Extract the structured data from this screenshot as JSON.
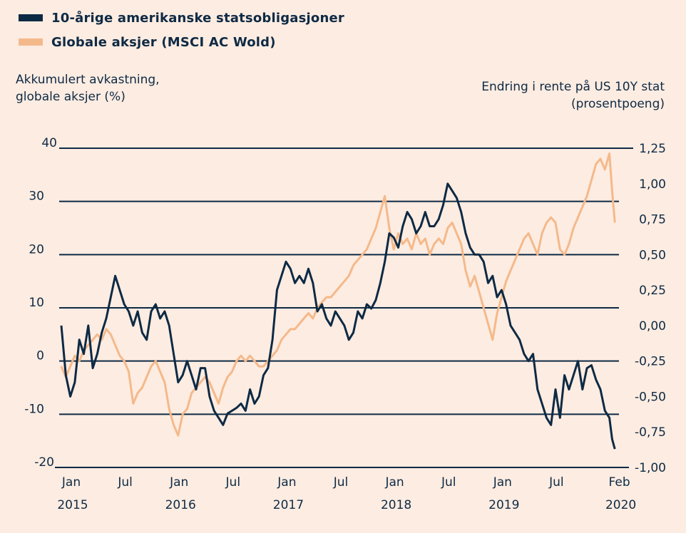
{
  "chart_data": {
    "type": "line",
    "legend": [
      {
        "name": "10-årige amerikanske statsobligasjoner",
        "color": "#0d2a45",
        "axis": "right"
      },
      {
        "name": "Globale aksjer (MSCI AC Wold)",
        "color": "#f4b98b",
        "axis": "left"
      }
    ],
    "legend_placement": "top-left",
    "ylabel_left": [
      "Akkumulert  avkastning,",
      "globale  aksjer  (%)"
    ],
    "ylabel_right": [
      "Endring  i rente på US 10Y  stat",
      "(prosentpoeng)"
    ],
    "ylim_left": [
      -20,
      40
    ],
    "ylim_right": [
      -1.0,
      1.25
    ],
    "yticks_left": [
      "40",
      "30",
      "20",
      "10",
      "0",
      "-10",
      "-20"
    ],
    "yticks_right": [
      "1,25",
      "1,00",
      "0,75",
      "0,50",
      "0,25",
      "0,00",
      "-0,25",
      "-0,50",
      "-0,75",
      "-1,00"
    ],
    "xticks": [
      {
        "month": "Jan",
        "year": "2015",
        "t": 0
      },
      {
        "month": "Jul",
        "year": "",
        "t": 6
      },
      {
        "month": "Jan",
        "year": "2016",
        "t": 12
      },
      {
        "month": "Jul",
        "year": "",
        "t": 18
      },
      {
        "month": "Jan",
        "year": "2017",
        "t": 24
      },
      {
        "month": "Jul",
        "year": "",
        "t": 30
      },
      {
        "month": "Jan",
        "year": "2018",
        "t": 36
      },
      {
        "month": "Jul",
        "year": "",
        "t": 42
      },
      {
        "month": "Jan",
        "year": "2019",
        "t": 48
      },
      {
        "month": "Jul",
        "year": "",
        "t": 54
      },
      {
        "month": "Feb",
        "year": "2020",
        "t": 61
      }
    ],
    "grid": "horizontal",
    "x_unit": "months since Jan 2015",
    "series": [
      {
        "name": "Globale aksjer (MSCI AC Wold)",
        "axis": "left",
        "points": [
          [
            0,
            -1
          ],
          [
            0.5,
            -3
          ],
          [
            1,
            -1
          ],
          [
            1.5,
            1
          ],
          [
            2,
            0
          ],
          [
            2.5,
            2
          ],
          [
            3,
            3
          ],
          [
            3.5,
            4
          ],
          [
            4,
            5
          ],
          [
            4.5,
            4
          ],
          [
            5,
            6
          ],
          [
            5.5,
            5
          ],
          [
            6,
            3
          ],
          [
            6.5,
            1
          ],
          [
            7,
            0
          ],
          [
            7.5,
            -2
          ],
          [
            8,
            -8
          ],
          [
            8.5,
            -6
          ],
          [
            9,
            -5
          ],
          [
            9.5,
            -3
          ],
          [
            10,
            -1
          ],
          [
            10.5,
            0
          ],
          [
            11,
            -2
          ],
          [
            11.5,
            -4
          ],
          [
            12,
            -9
          ],
          [
            12.5,
            -12
          ],
          [
            13,
            -14
          ],
          [
            13.5,
            -10
          ],
          [
            14,
            -9
          ],
          [
            14.5,
            -6
          ],
          [
            15,
            -5
          ],
          [
            15.5,
            -4
          ],
          [
            16,
            -3
          ],
          [
            16.5,
            -4
          ],
          [
            17,
            -6
          ],
          [
            17.5,
            -8
          ],
          [
            18,
            -5
          ],
          [
            18.5,
            -3
          ],
          [
            19,
            -2
          ],
          [
            19.5,
            0
          ],
          [
            20,
            1
          ],
          [
            20.5,
            0
          ],
          [
            21,
            1
          ],
          [
            21.5,
            0
          ],
          [
            22,
            -1
          ],
          [
            22.5,
            -1
          ],
          [
            23,
            0
          ],
          [
            23.5,
            1
          ],
          [
            24,
            2
          ],
          [
            24.5,
            4
          ],
          [
            25,
            5
          ],
          [
            25.5,
            6
          ],
          [
            26,
            6
          ],
          [
            26.5,
            7
          ],
          [
            27,
            8
          ],
          [
            27.5,
            9
          ],
          [
            28,
            8
          ],
          [
            28.5,
            10
          ],
          [
            29,
            11
          ],
          [
            29.5,
            12
          ],
          [
            30,
            12
          ],
          [
            30.5,
            13
          ],
          [
            31,
            14
          ],
          [
            31.5,
            15
          ],
          [
            32,
            16
          ],
          [
            32.5,
            18
          ],
          [
            33,
            19
          ],
          [
            33.5,
            20
          ],
          [
            34,
            21
          ],
          [
            34.5,
            23
          ],
          [
            35,
            25
          ],
          [
            35.5,
            28
          ],
          [
            36,
            31
          ],
          [
            36.5,
            25
          ],
          [
            37,
            21
          ],
          [
            37.5,
            24
          ],
          [
            38,
            22
          ],
          [
            38.5,
            23
          ],
          [
            39,
            21
          ],
          [
            39.5,
            24
          ],
          [
            40,
            22
          ],
          [
            40.5,
            23
          ],
          [
            41,
            20
          ],
          [
            41.5,
            22
          ],
          [
            42,
            23
          ],
          [
            42.5,
            22
          ],
          [
            43,
            25
          ],
          [
            43.5,
            26
          ],
          [
            44,
            24
          ],
          [
            44.5,
            22
          ],
          [
            45,
            17
          ],
          [
            45.5,
            14
          ],
          [
            46,
            16
          ],
          [
            46.5,
            13
          ],
          [
            47,
            10
          ],
          [
            47.5,
            7
          ],
          [
            48,
            4
          ],
          [
            48.5,
            9
          ],
          [
            49,
            12
          ],
          [
            49.5,
            15
          ],
          [
            50,
            17
          ],
          [
            50.5,
            19
          ],
          [
            51,
            21
          ],
          [
            51.5,
            23
          ],
          [
            52,
            24
          ],
          [
            52.5,
            22
          ],
          [
            53,
            20
          ],
          [
            53.5,
            24
          ],
          [
            54,
            26
          ],
          [
            54.5,
            27
          ],
          [
            55,
            26
          ],
          [
            55.5,
            21
          ],
          [
            56,
            20
          ],
          [
            56.5,
            22
          ],
          [
            57,
            25
          ],
          [
            57.5,
            27
          ],
          [
            58,
            29
          ],
          [
            58.5,
            31
          ],
          [
            59,
            34
          ],
          [
            59.5,
            37
          ],
          [
            60,
            38
          ],
          [
            60.5,
            36
          ],
          [
            61,
            39
          ],
          [
            61.3,
            32
          ],
          [
            61.6,
            26
          ]
        ]
      },
      {
        "name": "10-årige amerikanske statsobligasjoner",
        "axis": "right",
        "points": [
          [
            0,
            0.0
          ],
          [
            0.5,
            -0.35
          ],
          [
            1,
            -0.5
          ],
          [
            1.5,
            -0.4
          ],
          [
            2,
            -0.1
          ],
          [
            2.5,
            -0.2
          ],
          [
            3,
            0.0
          ],
          [
            3.5,
            -0.3
          ],
          [
            4,
            -0.2
          ],
          [
            4.5,
            -0.05
          ],
          [
            5,
            0.05
          ],
          [
            5.5,
            0.2
          ],
          [
            6,
            0.35
          ],
          [
            6.5,
            0.25
          ],
          [
            7,
            0.15
          ],
          [
            7.5,
            0.1
          ],
          [
            8,
            0.0
          ],
          [
            8.5,
            0.1
          ],
          [
            9,
            -0.05
          ],
          [
            9.5,
            -0.1
          ],
          [
            10,
            0.1
          ],
          [
            10.5,
            0.15
          ],
          [
            11,
            0.05
          ],
          [
            11.5,
            0.1
          ],
          [
            12,
            0.0
          ],
          [
            12.5,
            -0.2
          ],
          [
            13,
            -0.4
          ],
          [
            13.5,
            -0.35
          ],
          [
            14,
            -0.25
          ],
          [
            14.5,
            -0.35
          ],
          [
            15,
            -0.45
          ],
          [
            15.5,
            -0.3
          ],
          [
            16,
            -0.3
          ],
          [
            16.5,
            -0.5
          ],
          [
            17,
            -0.6
          ],
          [
            17.5,
            -0.65
          ],
          [
            18,
            -0.7
          ],
          [
            18.5,
            -0.62
          ],
          [
            19,
            -0.6
          ],
          [
            19.5,
            -0.58
          ],
          [
            20,
            -0.55
          ],
          [
            20.5,
            -0.6
          ],
          [
            21,
            -0.45
          ],
          [
            21.5,
            -0.55
          ],
          [
            22,
            -0.5
          ],
          [
            22.5,
            -0.35
          ],
          [
            23,
            -0.3
          ],
          [
            23.5,
            -0.1
          ],
          [
            24,
            0.25
          ],
          [
            24.5,
            0.35
          ],
          [
            25,
            0.45
          ],
          [
            25.5,
            0.4
          ],
          [
            26,
            0.3
          ],
          [
            26.5,
            0.35
          ],
          [
            27,
            0.3
          ],
          [
            27.5,
            0.4
          ],
          [
            28,
            0.3
          ],
          [
            28.5,
            0.1
          ],
          [
            29,
            0.15
          ],
          [
            29.5,
            0.05
          ],
          [
            30,
            0.0
          ],
          [
            30.5,
            0.1
          ],
          [
            31,
            0.05
          ],
          [
            31.5,
            0.0
          ],
          [
            32,
            -0.1
          ],
          [
            32.5,
            -0.05
          ],
          [
            33,
            0.1
          ],
          [
            33.5,
            0.05
          ],
          [
            34,
            0.15
          ],
          [
            34.5,
            0.12
          ],
          [
            35,
            0.18
          ],
          [
            35.5,
            0.3
          ],
          [
            36,
            0.45
          ],
          [
            36.5,
            0.65
          ],
          [
            37,
            0.62
          ],
          [
            37.5,
            0.55
          ],
          [
            38,
            0.7
          ],
          [
            38.5,
            0.8
          ],
          [
            39,
            0.75
          ],
          [
            39.5,
            0.65
          ],
          [
            40,
            0.7
          ],
          [
            40.5,
            0.8
          ],
          [
            41,
            0.7
          ],
          [
            41.5,
            0.7
          ],
          [
            42,
            0.75
          ],
          [
            42.5,
            0.85
          ],
          [
            43,
            1.0
          ],
          [
            43.5,
            0.95
          ],
          [
            44,
            0.9
          ],
          [
            44.5,
            0.8
          ],
          [
            45,
            0.65
          ],
          [
            45.5,
            0.55
          ],
          [
            46,
            0.5
          ],
          [
            46.5,
            0.5
          ],
          [
            47,
            0.45
          ],
          [
            47.5,
            0.3
          ],
          [
            48,
            0.35
          ],
          [
            48.5,
            0.2
          ],
          [
            49,
            0.25
          ],
          [
            49.5,
            0.15
          ],
          [
            50,
            0.0
          ],
          [
            50.5,
            -0.05
          ],
          [
            51,
            -0.1
          ],
          [
            51.5,
            -0.2
          ],
          [
            52,
            -0.25
          ],
          [
            52.5,
            -0.2
          ],
          [
            53,
            -0.45
          ],
          [
            53.5,
            -0.55
          ],
          [
            54,
            -0.65
          ],
          [
            54.5,
            -0.7
          ],
          [
            55,
            -0.45
          ],
          [
            55.5,
            -0.65
          ],
          [
            56,
            -0.35
          ],
          [
            56.5,
            -0.45
          ],
          [
            57,
            -0.35
          ],
          [
            57.5,
            -0.25
          ],
          [
            58,
            -0.45
          ],
          [
            58.5,
            -0.3
          ],
          [
            59,
            -0.28
          ],
          [
            59.5,
            -0.38
          ],
          [
            60,
            -0.45
          ],
          [
            60.5,
            -0.6
          ],
          [
            61,
            -0.65
          ],
          [
            61.3,
            -0.8
          ],
          [
            61.6,
            -0.87
          ]
        ]
      }
    ]
  }
}
